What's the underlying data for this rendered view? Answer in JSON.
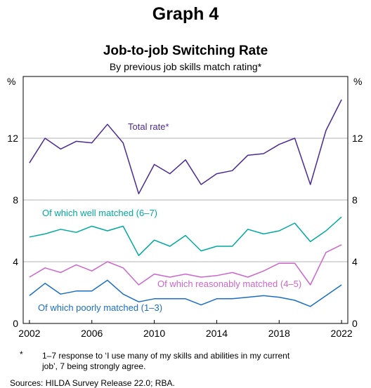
{
  "graph_number": "Graph 4",
  "chart_data": {
    "type": "line",
    "title": "Job-to-job Switching Rate",
    "subtitle": "By previous job skills match rating*",
    "ylabel_left": "%",
    "ylabel_right": "%",
    "ylim": [
      0,
      16
    ],
    "xlim": [
      2001.6,
      2022.4
    ],
    "yticks": [
      0,
      4,
      8,
      12
    ],
    "xticks": [
      2002,
      2006,
      2010,
      2014,
      2018,
      2022
    ],
    "grid": "horizontal",
    "series": [
      {
        "name": "Total rate*",
        "color": "#4b2a96",
        "x": [
          2002,
          2003,
          2004,
          2005,
          2006,
          2007,
          2008,
          2009,
          2010,
          2011,
          2012,
          2013,
          2014,
          2015,
          2016,
          2017,
          2018,
          2019,
          2020,
          2021,
          2022
        ],
        "values": [
          10.4,
          12.0,
          11.3,
          11.8,
          11.7,
          12.9,
          11.7,
          8.4,
          10.3,
          9.7,
          10.6,
          9.0,
          9.7,
          9.9,
          10.9,
          11.0,
          11.6,
          12.0,
          9.0,
          12.5,
          14.5
        ]
      },
      {
        "name": "Of which well matched (6–7)",
        "color": "#00a99d",
        "x": [
          2002,
          2003,
          2004,
          2005,
          2006,
          2007,
          2008,
          2009,
          2010,
          2011,
          2012,
          2013,
          2014,
          2015,
          2016,
          2017,
          2018,
          2019,
          2020,
          2021,
          2022
        ],
        "values": [
          5.6,
          5.8,
          6.1,
          5.9,
          6.3,
          6.0,
          6.3,
          4.4,
          5.4,
          5.0,
          5.7,
          4.7,
          5.0,
          5.0,
          6.1,
          5.8,
          6.0,
          6.5,
          5.3,
          6.0,
          6.9
        ]
      },
      {
        "name": "Of which reasonably matched (4–5)",
        "color": "#cc66cc",
        "x": [
          2002,
          2003,
          2004,
          2005,
          2006,
          2007,
          2008,
          2009,
          2010,
          2011,
          2012,
          2013,
          2014,
          2015,
          2016,
          2017,
          2018,
          2019,
          2020,
          2021,
          2022
        ],
        "values": [
          3.0,
          3.6,
          3.3,
          3.8,
          3.4,
          4.0,
          3.6,
          2.5,
          3.2,
          3.0,
          3.2,
          3.0,
          3.1,
          3.3,
          3.0,
          3.4,
          3.9,
          3.9,
          2.5,
          4.6,
          5.1
        ]
      },
      {
        "name": "Of which poorly matched (1–3)",
        "color": "#1a6fc4",
        "x": [
          2002,
          2003,
          2004,
          2005,
          2006,
          2007,
          2008,
          2009,
          2010,
          2011,
          2012,
          2013,
          2014,
          2015,
          2016,
          2017,
          2018,
          2019,
          2020,
          2021,
          2022
        ],
        "values": [
          1.8,
          2.6,
          1.9,
          2.1,
          2.1,
          2.8,
          1.9,
          1.4,
          1.6,
          1.6,
          1.6,
          1.2,
          1.6,
          1.6,
          1.7,
          1.8,
          1.7,
          1.5,
          1.1,
          1.8,
          2.5
        ]
      }
    ]
  },
  "footnote": {
    "marker": "*",
    "line1": "1–7 response to ‘I use many of my skills and abilities in my current",
    "line2": "job’, 7 being strongly agree."
  },
  "sources": "Sources: HILDA Survey Release 22.0; RBA."
}
